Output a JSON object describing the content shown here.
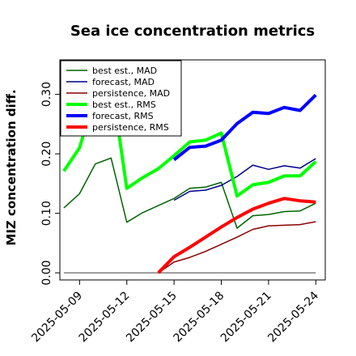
{
  "chart_data": {
    "type": "line",
    "title": "Sea ice concentration metrics",
    "ylabel": "MIZ concentration diff.",
    "xlabel": "",
    "ylim": [
      -0.012,
      0.358
    ],
    "yticks": [
      0.0,
      0.1,
      0.2,
      0.3
    ],
    "ytick_labels": [
      "0.00",
      "0.10",
      "0.20",
      "0.30"
    ],
    "xlim": [
      7.75,
      24.6
    ],
    "xticks": [
      9,
      12,
      15,
      18,
      21,
      24
    ],
    "xtick_labels": [
      "2025-05-09",
      "2025-05-12",
      "2025-05-15",
      "2025-05-18",
      "2025-05-21",
      "2025-05-24"
    ],
    "highlight_tick_color": "#228b22",
    "highlight_tick_index": 2,
    "grid": false,
    "legend_position": "top-left",
    "x_days": [
      8,
      9,
      10,
      11,
      12,
      13,
      14,
      15,
      16,
      17,
      18,
      19,
      20,
      21,
      22,
      23,
      24
    ],
    "series": [
      {
        "name": "best est., MAD",
        "color": "#006400",
        "width": 1.5,
        "values": [
          0.109,
          0.133,
          0.183,
          0.193,
          0.085,
          0.101,
          0.113,
          0.125,
          0.142,
          0.144,
          0.152,
          0.075,
          0.096,
          0.098,
          0.103,
          0.104,
          0.117
        ]
      },
      {
        "name": "forecast,  MAD",
        "color": "#00008b",
        "width": 1.5,
        "values": [
          null,
          null,
          null,
          null,
          null,
          null,
          null,
          0.122,
          0.137,
          0.139,
          0.147,
          0.162,
          0.181,
          0.174,
          0.18,
          0.176,
          0.192
        ]
      },
      {
        "name": "persistence, MAD",
        "color": "#8b0000",
        "width": 1.5,
        "values": [
          null,
          null,
          null,
          null,
          null,
          null,
          0.0,
          0.018,
          0.026,
          0.036,
          0.048,
          0.06,
          0.073,
          0.079,
          0.08,
          0.081,
          0.086
        ]
      },
      {
        "name": "best est., RMS",
        "color": "#00ff00",
        "width": 4,
        "values": [
          0.171,
          0.21,
          0.3,
          0.325,
          0.142,
          0.16,
          0.175,
          0.197,
          0.22,
          0.223,
          0.235,
          0.129,
          0.148,
          0.152,
          0.163,
          0.163,
          0.187
        ]
      },
      {
        "name": "forecast,  RMS",
        "color": "#0000ff",
        "width": 4,
        "values": [
          null,
          null,
          null,
          null,
          null,
          null,
          null,
          0.19,
          0.211,
          0.213,
          0.223,
          0.251,
          0.27,
          0.268,
          0.278,
          0.273,
          0.299
        ]
      },
      {
        "name": "persistence, RMS",
        "color": "#ff0000",
        "width": 4,
        "values": [
          null,
          null,
          null,
          null,
          null,
          null,
          0.0,
          0.027,
          0.043,
          0.06,
          0.077,
          0.093,
          0.107,
          0.117,
          0.125,
          0.121,
          0.119
        ]
      },
      {
        "name": "",
        "color": "#808080",
        "width": 1.5,
        "values": [
          0.0,
          0.0,
          0.0,
          0.0,
          0.0,
          0.0,
          0.0,
          0.0,
          0.0,
          0.0,
          0.0,
          0.0,
          0.0,
          0.0,
          0.0,
          0.0,
          0.0
        ]
      }
    ]
  }
}
